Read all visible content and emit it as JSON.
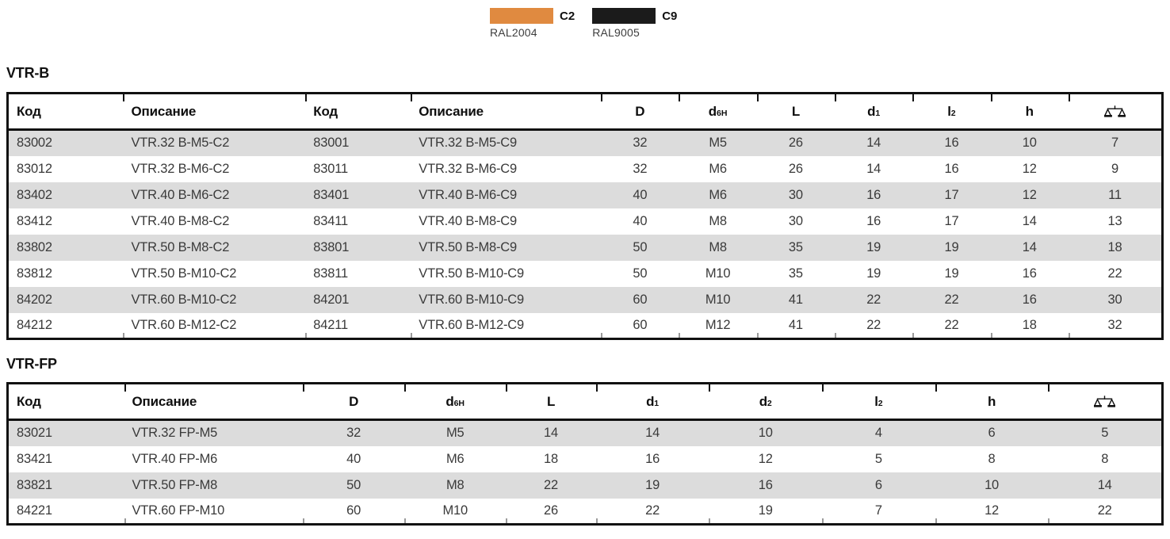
{
  "legend": {
    "items": [
      {
        "code": "C2",
        "ral": "RAL2004",
        "color": "#E08A40"
      },
      {
        "code": "C9",
        "ral": "RAL9005",
        "color": "#1B1B1B"
      }
    ]
  },
  "tables": [
    {
      "title": "VTR-B",
      "columns": [
        {
          "label": "Код"
        },
        {
          "label": "Описание"
        },
        {
          "label": "Код"
        },
        {
          "label": "Описание"
        },
        {
          "label": "D"
        },
        {
          "label": "d",
          "sub": "6H"
        },
        {
          "label": "L"
        },
        {
          "label": "d",
          "sub": "1"
        },
        {
          "label": "l",
          "sub": "2"
        },
        {
          "label": "h"
        },
        {
          "icon": "scales-icon"
        }
      ],
      "rows": [
        [
          "83002",
          "VTR.32 B-M5-C2",
          "83001",
          "VTR.32 B-M5-C9",
          "32",
          "M5",
          "26",
          "14",
          "16",
          "10",
          "7"
        ],
        [
          "83012",
          "VTR.32 B-M6-C2",
          "83011",
          "VTR.32 B-M6-C9",
          "32",
          "M6",
          "26",
          "14",
          "16",
          "12",
          "9"
        ],
        [
          "83402",
          "VTR.40 B-M6-C2",
          "83401",
          "VTR.40 B-M6-C9",
          "40",
          "M6",
          "30",
          "16",
          "17",
          "12",
          "11"
        ],
        [
          "83412",
          "VTR.40 B-M8-C2",
          "83411",
          "VTR.40 B-M8-C9",
          "40",
          "M8",
          "30",
          "16",
          "17",
          "14",
          "13"
        ],
        [
          "83802",
          "VTR.50 B-M8-C2",
          "83801",
          "VTR.50 B-M8-C9",
          "50",
          "M8",
          "35",
          "19",
          "19",
          "14",
          "18"
        ],
        [
          "83812",
          "VTR.50 B-M10-C2",
          "83811",
          "VTR.50 B-M10-C9",
          "50",
          "M10",
          "35",
          "19",
          "19",
          "16",
          "22"
        ],
        [
          "84202",
          "VTR.60 B-M10-C2",
          "84201",
          "VTR.60 B-M10-C9",
          "60",
          "M10",
          "41",
          "22",
          "22",
          "16",
          "30"
        ],
        [
          "84212",
          "VTR.60 B-M12-C2",
          "84211",
          "VTR.60 B-M12-C9",
          "60",
          "M12",
          "41",
          "22",
          "22",
          "18",
          "32"
        ]
      ]
    },
    {
      "title": "VTR-FP",
      "columns": [
        {
          "label": "Код"
        },
        {
          "label": "Описание"
        },
        {
          "label": "D"
        },
        {
          "label": "d",
          "sub": "6H"
        },
        {
          "label": "L"
        },
        {
          "label": "d",
          "sub": "1"
        },
        {
          "label": "d",
          "sub": "2"
        },
        {
          "label": "l",
          "sub": "2"
        },
        {
          "label": "h"
        },
        {
          "icon": "scales-icon"
        }
      ],
      "rows": [
        [
          "83021",
          "VTR.32 FP-M5",
          "32",
          "M5",
          "14",
          "14",
          "10",
          "4",
          "6",
          "5"
        ],
        [
          "83421",
          "VTR.40 FP-M6",
          "40",
          "M6",
          "18",
          "16",
          "12",
          "5",
          "8",
          "8"
        ],
        [
          "83821",
          "VTR.50 FP-M8",
          "50",
          "M8",
          "22",
          "19",
          "16",
          "6",
          "10",
          "14"
        ],
        [
          "84221",
          "VTR.60 FP-M10",
          "60",
          "M10",
          "26",
          "22",
          "19",
          "7",
          "12",
          "22"
        ]
      ]
    }
  ]
}
